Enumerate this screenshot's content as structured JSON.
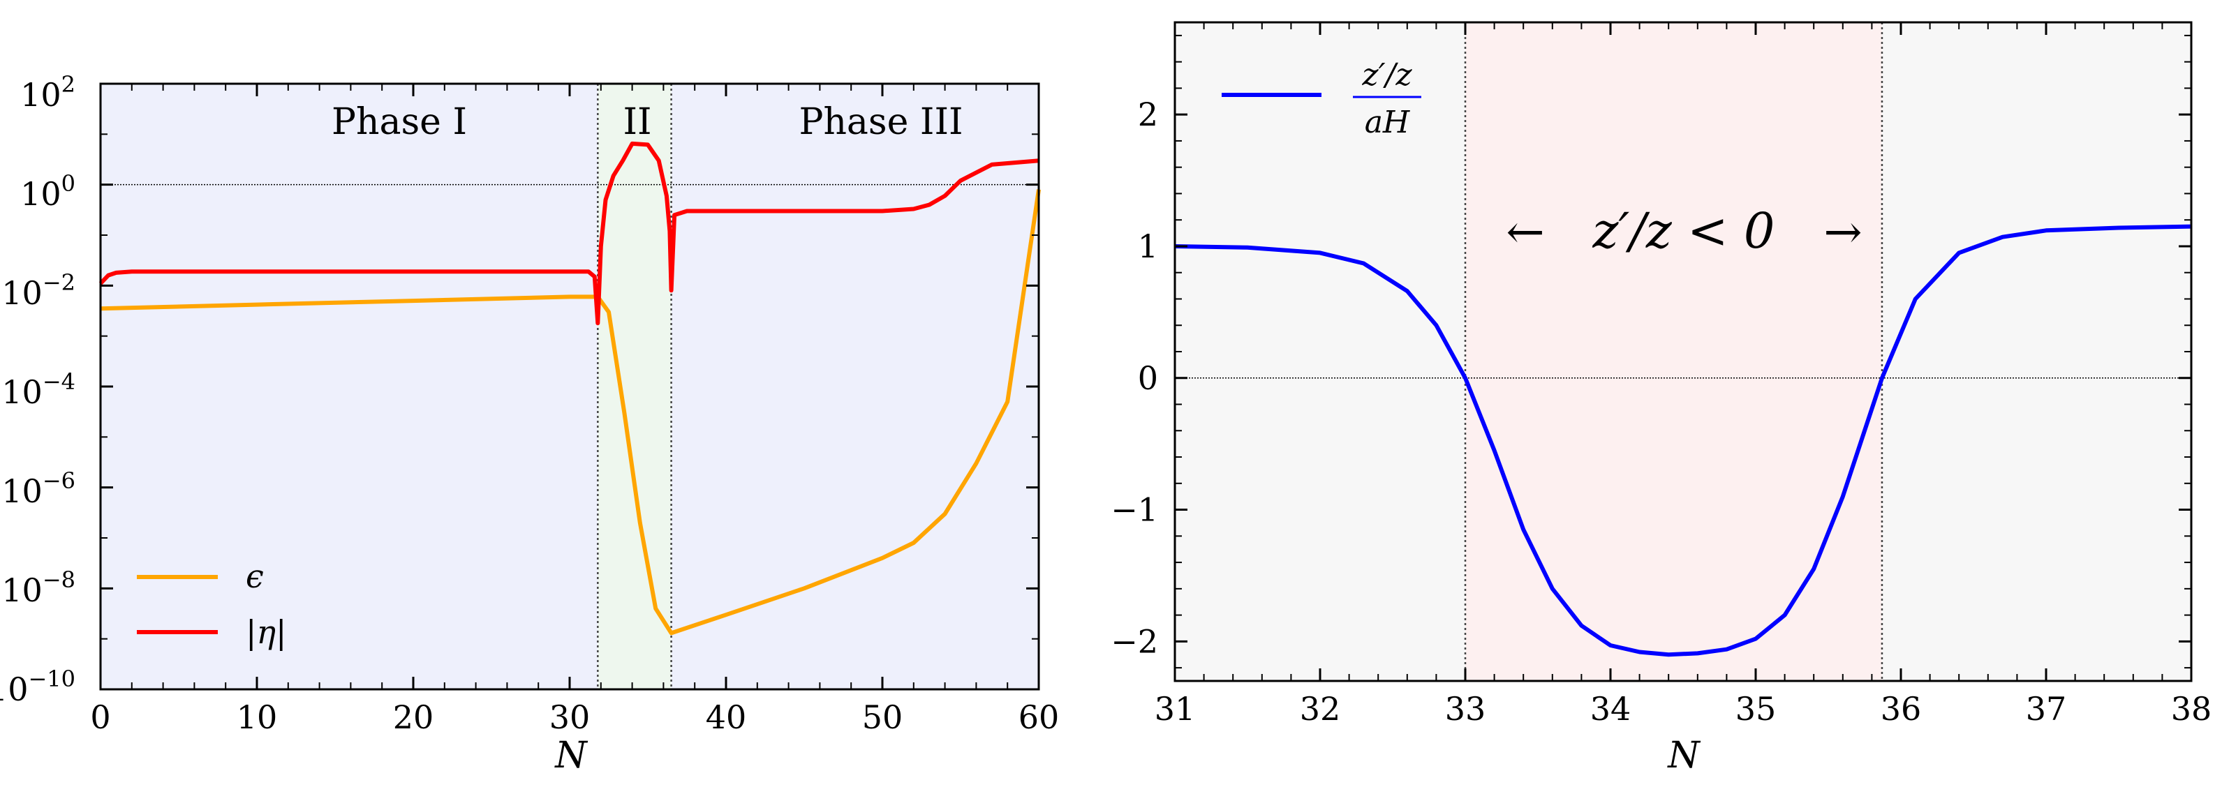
{
  "chart_data": [
    {
      "type": "line",
      "xlabel": "N",
      "xlim": [
        0,
        60
      ],
      "ylim_exponent": [
        -10,
        2
      ],
      "yscale": "log",
      "x_ticks": [
        0,
        10,
        20,
        30,
        40,
        50,
        60
      ],
      "y_ticks": [
        {
          "base": "10",
          "exp": "2"
        },
        {
          "base": "10",
          "exp": "0"
        },
        {
          "base": "10",
          "exp": "−2"
        },
        {
          "base": "10",
          "exp": "−4"
        },
        {
          "base": "10",
          "exp": "−6"
        },
        {
          "base": "10",
          "exp": "−8"
        },
        {
          "base": "10",
          "exp": "−10"
        }
      ],
      "background_color": "#eef0fc",
      "shaded_region": {
        "x": [
          31.8,
          36.5
        ],
        "color": "#eef7ee"
      },
      "vertical_lines": [
        31.8,
        36.5
      ],
      "horizontal_line": 1,
      "phase_labels": [
        "Phase I",
        "II",
        "Phase III"
      ],
      "legend_position": "bottom-left",
      "series": [
        {
          "name": "ϵ",
          "color": "#ffa500",
          "x": [
            0,
            10,
            20,
            30,
            31.8,
            32.5,
            33.5,
            34.5,
            35.5,
            36.5,
            40,
            45,
            50,
            52,
            54,
            56,
            58,
            60
          ],
          "y": [
            0.0035,
            0.0042,
            0.005,
            0.006,
            0.006,
            0.003,
            3e-05,
            2e-07,
            4e-09,
            1.3e-09,
            3e-09,
            1e-08,
            4e-08,
            8e-08,
            3e-07,
            3e-06,
            5e-05,
            0.8
          ]
        },
        {
          "name": "|η|",
          "color": "#ff0000",
          "x": [
            0,
            0.5,
            1,
            2,
            5,
            10,
            20,
            30,
            31.2,
            31.6,
            31.8,
            32.0,
            32.3,
            32.8,
            33.4,
            34.0,
            35.0,
            35.7,
            36.2,
            36.4,
            36.5,
            36.7,
            37.5,
            40,
            45,
            50,
            52,
            53,
            54,
            55,
            57,
            60
          ],
          "y": [
            0.011,
            0.016,
            0.018,
            0.019,
            0.019,
            0.019,
            0.019,
            0.019,
            0.019,
            0.015,
            0.0018,
            0.06,
            0.5,
            1.5,
            3,
            6.5,
            6.2,
            3,
            0.6,
            0.12,
            0.008,
            0.25,
            0.3,
            0.3,
            0.3,
            0.3,
            0.33,
            0.4,
            0.6,
            1.2,
            2.5,
            3
          ]
        }
      ]
    },
    {
      "type": "line",
      "xlabel": "N",
      "xlim": [
        31,
        38
      ],
      "ylim": [
        -2.3,
        2.7
      ],
      "x_ticks": [
        31,
        32,
        33,
        34,
        35,
        36,
        37,
        38
      ],
      "y_ticks": [
        {
          "value": 2,
          "label": "2"
        },
        {
          "value": 1,
          "label": "1"
        },
        {
          "value": 0,
          "label": "0"
        },
        {
          "value": -1,
          "label": "−1"
        },
        {
          "value": -2,
          "label": "−2"
        }
      ],
      "background_color": "#f7f7f7",
      "shaded_region": {
        "x": [
          33.0,
          35.87
        ],
        "color": "#fdf0f0"
      },
      "vertical_lines": [
        33.0,
        35.87
      ],
      "horizontal_line": 0,
      "annotation": {
        "left_arrow": "←",
        "text": "z′/z < 0",
        "right_arrow": "→",
        "color": "#ff0000"
      },
      "legend_position": "top-left",
      "series": [
        {
          "name_numerator": "z′/z",
          "name_denominator": "aH",
          "color": "#0000ff",
          "x": [
            31,
            31.5,
            32,
            32.3,
            32.6,
            32.8,
            33.0,
            33.2,
            33.4,
            33.6,
            33.8,
            34.0,
            34.2,
            34.4,
            34.6,
            34.8,
            35.0,
            35.2,
            35.4,
            35.6,
            35.87,
            36.1,
            36.4,
            36.7,
            37,
            37.5,
            38
          ],
          "y": [
            1.0,
            0.99,
            0.95,
            0.87,
            0.66,
            0.4,
            0.0,
            -0.55,
            -1.15,
            -1.6,
            -1.88,
            -2.03,
            -2.08,
            -2.1,
            -2.09,
            -2.06,
            -1.98,
            -1.8,
            -1.45,
            -0.9,
            0.0,
            0.6,
            0.95,
            1.07,
            1.12,
            1.14,
            1.15
          ]
        }
      ]
    }
  ]
}
